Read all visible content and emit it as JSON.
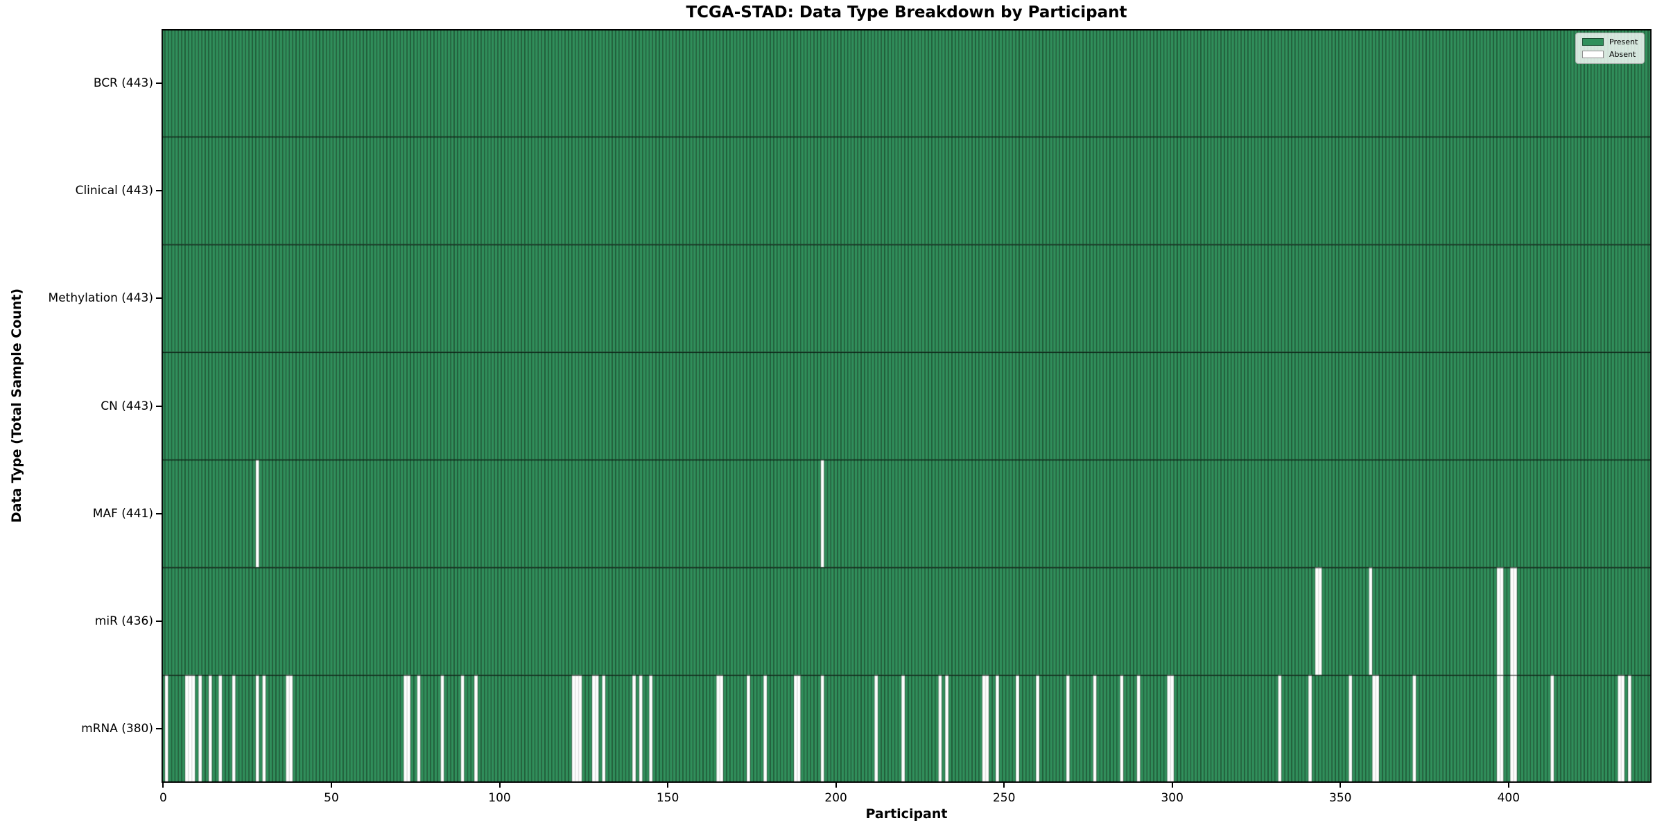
{
  "chart_data": {
    "type": "heatmap",
    "title": "TCGA-STAD: Data Type Breakdown by Participant",
    "xlabel": "Participant",
    "ylabel": "Data Type (Total Sample Count)",
    "n_participants": 443,
    "x_axis": {
      "ticks": [
        0,
        50,
        100,
        150,
        200,
        250,
        300,
        350,
        400
      ],
      "range": [
        0,
        442
      ]
    },
    "rows": [
      {
        "label": "BCR (443)",
        "data_type": "BCR",
        "total": 443,
        "absent_participants": []
      },
      {
        "label": "Clinical (443)",
        "data_type": "Clinical",
        "total": 443,
        "absent_participants": []
      },
      {
        "label": "Methylation (443)",
        "data_type": "Methylation",
        "total": 443,
        "absent_participants": []
      },
      {
        "label": "CN (443)",
        "data_type": "CN",
        "total": 443,
        "absent_participants": []
      },
      {
        "label": "MAF (441)",
        "data_type": "MAF",
        "total": 441,
        "absent_participants": [
          28,
          196
        ]
      },
      {
        "label": "miR (436)",
        "data_type": "miR",
        "total": 436,
        "absent_participants": [
          343,
          344,
          359,
          397,
          398,
          401,
          402
        ]
      },
      {
        "label": "mRNA (380)",
        "data_type": "mRNA",
        "total": 380,
        "absent_participants": [
          1,
          7,
          8,
          9,
          11,
          14,
          17,
          21,
          28,
          30,
          37,
          38,
          72,
          73,
          76,
          83,
          89,
          93,
          122,
          123,
          124,
          128,
          129,
          131,
          140,
          142,
          145,
          165,
          166,
          174,
          179,
          188,
          189,
          196,
          212,
          220,
          231,
          233,
          244,
          245,
          248,
          254,
          260,
          269,
          277,
          285,
          290,
          299,
          300,
          332,
          341,
          353,
          360,
          361,
          372,
          397,
          398,
          401,
          402,
          413,
          433,
          434,
          436
        ]
      }
    ],
    "legend": {
      "position": "upper right",
      "entries": [
        {
          "label": "Present",
          "color": "#31905c"
        },
        {
          "label": "Absent",
          "color": "#ffffff"
        }
      ]
    },
    "colors": {
      "present": "#31905c",
      "absent": "#ffffff",
      "bar_edge": "#15321f",
      "plot_border": "#000000"
    }
  }
}
